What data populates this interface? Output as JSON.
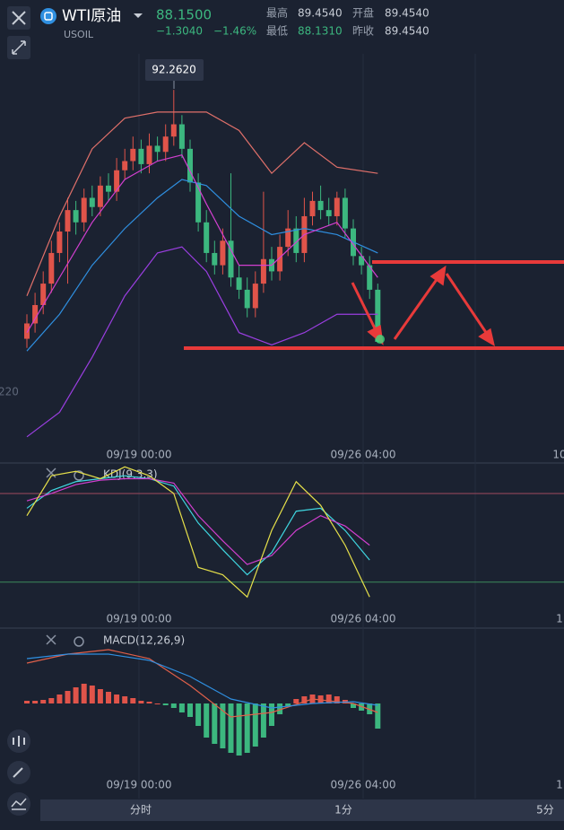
{
  "header": {
    "name": "WTI原油",
    "symbol": "USOIL",
    "price": "88.1500",
    "change": "−1.3040",
    "change_pct": "−1.46%",
    "stats": [
      {
        "label": "最高",
        "value": "89.4540"
      },
      {
        "label": "开盘",
        "value": "89.4540"
      },
      {
        "label": "最低",
        "value": "88.1310"
      },
      {
        "label": "昨收",
        "value": "89.4540"
      }
    ]
  },
  "chart_data": [
    {
      "type": "candlestick",
      "callout": "92.2620",
      "side_label": "220",
      "x_labels": [
        "09/19 00:00",
        "09/26 04:00",
        "10"
      ],
      "ylim": [
        86.48,
        92.85
      ],
      "up_color": "#e0544a",
      "down_color": "#3cb77f",
      "open": [
        88.2,
        88.45,
        88.75,
        89.1,
        89.6,
        89.95,
        90.3,
        90.1,
        90.5,
        90.35,
        90.7,
        90.6,
        90.95,
        91.1,
        91.3,
        91.05,
        91.35,
        91.25,
        91.5,
        91.7,
        91.3,
        90.75,
        90.1,
        89.6,
        89.4,
        89.8,
        89.2,
        89.0,
        88.7,
        89.1,
        89.5,
        89.3,
        89.7,
        90.0,
        89.6,
        90.2,
        90.45,
        90.3,
        90.2,
        90.5,
        90.0,
        89.55,
        89.4,
        89.0
      ],
      "high": [
        88.6,
        88.95,
        89.3,
        89.8,
        90.1,
        90.5,
        90.45,
        90.65,
        90.7,
        90.85,
        90.9,
        91.15,
        91.3,
        91.5,
        91.45,
        91.55,
        91.5,
        91.7,
        92.262,
        91.85,
        91.45,
        90.9,
        90.3,
        89.8,
        90.0,
        90.9,
        89.4,
        89.2,
        89.3,
        90.6,
        89.7,
        89.9,
        90.3,
        90.2,
        90.5,
        90.6,
        90.7,
        90.5,
        90.6,
        90.65,
        90.15,
        89.7,
        89.55,
        89.1
      ],
      "low": [
        88.05,
        88.3,
        88.6,
        88.95,
        89.45,
        89.1,
        89.9,
        89.95,
        90.2,
        90.2,
        90.45,
        90.45,
        90.8,
        90.95,
        90.9,
        90.9,
        91.1,
        91.1,
        91.35,
        91.15,
        90.6,
        89.95,
        89.45,
        89.25,
        89.25,
        89.05,
        88.85,
        88.55,
        88.55,
        88.95,
        89.15,
        89.15,
        89.55,
        89.45,
        89.45,
        90.05,
        90.15,
        90.05,
        90.05,
        89.85,
        89.4,
        89.25,
        88.85,
        88.131
      ],
      "close": [
        88.45,
        88.75,
        89.1,
        89.6,
        89.95,
        90.3,
        90.1,
        90.5,
        90.35,
        90.7,
        90.6,
        90.95,
        91.1,
        91.3,
        91.05,
        91.35,
        91.25,
        91.5,
        91.7,
        91.3,
        90.75,
        90.1,
        89.6,
        89.4,
        89.8,
        89.2,
        89.0,
        88.7,
        89.1,
        89.5,
        89.3,
        89.7,
        90.0,
        89.6,
        90.2,
        90.45,
        90.3,
        90.2,
        90.5,
        90.0,
        89.55,
        89.4,
        89.0,
        88.15
      ],
      "lines": [
        {
          "color": "#2f8fe0",
          "x": [
            0,
            4,
            8,
            12,
            16,
            19,
            22,
            26,
            30,
            34,
            38,
            43
          ],
          "values": [
            88.0,
            88.6,
            89.4,
            90.0,
            90.5,
            90.8,
            90.7,
            90.2,
            89.9,
            90.0,
            89.9,
            89.6
          ]
        },
        {
          "color": "#d23fd0",
          "x": [
            0,
            4,
            8,
            12,
            16,
            19,
            22,
            26,
            30,
            34,
            38,
            43
          ],
          "values": [
            88.3,
            89.2,
            90.1,
            90.8,
            91.1,
            91.2,
            90.4,
            89.4,
            89.4,
            89.9,
            90.1,
            89.2
          ]
        },
        {
          "color": "#e0706a",
          "x": [
            0,
            4,
            8,
            12,
            16,
            19,
            22,
            26,
            30,
            34,
            38,
            43
          ],
          "values": [
            88.9,
            90.2,
            91.3,
            91.8,
            91.9,
            91.9,
            91.9,
            91.6,
            90.9,
            91.4,
            91.0,
            90.9
          ]
        },
        {
          "color": "#9a3ee0",
          "x": [
            0,
            4,
            8,
            12,
            16,
            19,
            22,
            26,
            30,
            34,
            38,
            43
          ],
          "values": [
            86.6,
            87.0,
            87.9,
            88.9,
            89.6,
            89.7,
            89.3,
            88.3,
            88.1,
            88.3,
            88.6,
            88.6
          ]
        }
      ]
    },
    {
      "type": "line",
      "title": "KDJ(9,3,3)",
      "x_labels": [
        "09/19 00:00",
        "09/26 04:00",
        "1"
      ],
      "ylim": [
        -5,
        100
      ],
      "hlines": [
        {
          "value": 80,
          "color": "#a04a5e"
        },
        {
          "value": 20,
          "color": "#3c8a5a"
        }
      ],
      "lines": [
        {
          "color": "#3fd6e0",
          "x": [
            0,
            3,
            6,
            9,
            12,
            15,
            18,
            21,
            24,
            27,
            30,
            33,
            36,
            39,
            42
          ],
          "values": [
            70,
            82,
            88,
            90,
            92,
            90,
            85,
            60,
            42,
            25,
            40,
            68,
            70,
            55,
            35
          ]
        },
        {
          "color": "#d23fd0",
          "x": [
            0,
            3,
            6,
            9,
            12,
            15,
            18,
            21,
            24,
            27,
            30,
            33,
            36,
            39,
            42
          ],
          "values": [
            75,
            80,
            86,
            89,
            90,
            90,
            87,
            65,
            48,
            32,
            38,
            55,
            65,
            58,
            45
          ]
        },
        {
          "color": "#e6e04a",
          "x": [
            0,
            3,
            6,
            9,
            12,
            15,
            18,
            21,
            24,
            27,
            30,
            33,
            36,
            39,
            42
          ],
          "values": [
            65,
            92,
            95,
            90,
            98,
            92,
            80,
            30,
            25,
            10,
            55,
            88,
            72,
            45,
            10
          ]
        }
      ]
    },
    {
      "type": "bar",
      "title": "MACD(12,26,9)",
      "x_labels": [
        "09/19 00:00",
        "09/26 04:00",
        "1"
      ],
      "ylim": [
        -0.86,
        0.79
      ],
      "up_color": "#e0544a",
      "down_color": "#3cb77f",
      "values": [
        0.03,
        0.03,
        0.04,
        0.06,
        0.1,
        0.14,
        0.18,
        0.22,
        0.2,
        0.16,
        0.13,
        0.1,
        0.08,
        0.06,
        0.03,
        0.02,
        0.0,
        -0.02,
        -0.05,
        -0.1,
        -0.15,
        -0.25,
        -0.38,
        -0.45,
        -0.5,
        -0.55,
        -0.58,
        -0.55,
        -0.48,
        -0.38,
        -0.25,
        -0.12,
        -0.03,
        0.05,
        0.08,
        0.1,
        0.09,
        0.1,
        0.08,
        0.04,
        -0.05,
        -0.08,
        -0.12,
        -0.28
      ],
      "lines": [
        {
          "color": "#e0604a",
          "x": [
            0,
            5,
            10,
            15,
            20,
            25,
            30,
            35,
            40,
            43
          ],
          "values": [
            0.45,
            0.55,
            0.6,
            0.5,
            0.2,
            -0.15,
            -0.1,
            0.05,
            0.0,
            -0.1
          ]
        },
        {
          "color": "#2f8fe0",
          "x": [
            0,
            5,
            10,
            15,
            20,
            25,
            30,
            35,
            40,
            43
          ],
          "values": [
            0.5,
            0.55,
            0.55,
            0.48,
            0.3,
            0.05,
            -0.05,
            0.0,
            0.02,
            -0.02
          ]
        }
      ]
    }
  ],
  "footer": {
    "tabs": [
      "分时",
      "1分",
      "5分"
    ]
  }
}
